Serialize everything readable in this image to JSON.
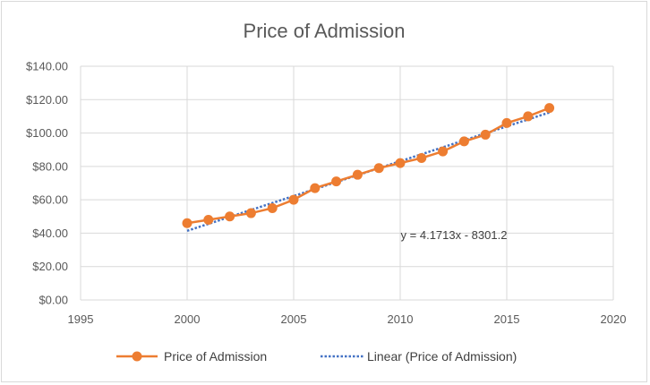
{
  "chart_data": {
    "type": "scatter",
    "title": "Price of Admission",
    "xlabel": "",
    "ylabel": "",
    "xlim": [
      1995,
      2020
    ],
    "ylim": [
      0,
      140
    ],
    "x_ticks": [
      1995,
      2000,
      2005,
      2010,
      2015,
      2020
    ],
    "y_ticks": [
      0,
      20,
      40,
      60,
      80,
      100,
      120,
      140
    ],
    "y_tick_labels": [
      "$0.00",
      "$20.00",
      "$40.00",
      "$60.00",
      "$80.00",
      "$100.00",
      "$120.00",
      "$140.00"
    ],
    "grid": true,
    "legend_position": "bottom",
    "series": [
      {
        "name": "Price of Admission",
        "color": "#ED7D31",
        "x": [
          2000,
          2001,
          2002,
          2003,
          2004,
          2005,
          2006,
          2007,
          2008,
          2009,
          2010,
          2011,
          2012,
          2013,
          2014,
          2015,
          2016,
          2017
        ],
        "y": [
          46,
          48,
          50,
          52,
          55,
          60,
          67,
          71,
          75,
          79,
          82,
          85,
          89,
          95,
          99,
          106,
          110,
          115
        ]
      }
    ],
    "trendline": {
      "name": "Linear (Price of Admission)",
      "color": "#4472C4",
      "slope": 4.1713,
      "intercept": -8301.2,
      "x_range": [
        2000,
        2017
      ],
      "equation_label": "y = 4.1713x - 8301.2"
    }
  }
}
